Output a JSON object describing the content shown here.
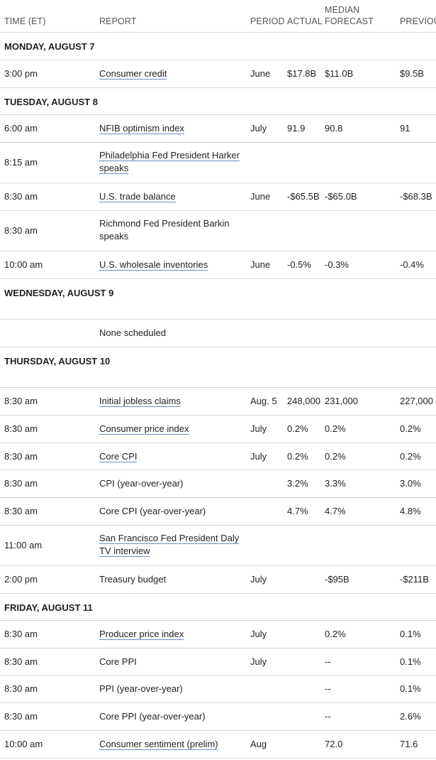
{
  "headers": {
    "time": "TIME (ET)",
    "report": "REPORT",
    "period": "PERIOD",
    "actual": "ACTUAL",
    "median_line1": "MEDIAN",
    "median_line2": "FORECAST",
    "previous": "PREVIOU"
  },
  "rows": [
    {
      "type": "day",
      "label": "MONDAY, AUGUST 7"
    },
    {
      "type": "event",
      "time": "3:00 pm",
      "report": "Consumer credit",
      "link": true,
      "period": "June",
      "actual": "$17.8B",
      "median": "$11.0B",
      "previous": "$9.5B"
    },
    {
      "type": "day",
      "label": "TUESDAY, AUGUST 8"
    },
    {
      "type": "event",
      "time": "6:00 am",
      "report": "NFIB optimism index",
      "link": true,
      "period": "July",
      "actual": "91.9",
      "median": "90.8",
      "previous": "91"
    },
    {
      "type": "event",
      "time": "8:15 am",
      "report": "Philadelphia Fed President Harker speaks",
      "link": true,
      "period": "",
      "actual": "",
      "median": "",
      "previous": ""
    },
    {
      "type": "event",
      "time": "8:30 am",
      "report": "U.S. trade balance",
      "link": true,
      "period": "June",
      "actual": "-$65.5B",
      "median": "-$65.0B",
      "previous": "-$68.3B"
    },
    {
      "type": "event",
      "time": "8:30 am",
      "report": "Richmond Fed President Barkin speaks",
      "link": false,
      "period": "",
      "actual": "",
      "median": "",
      "previous": ""
    },
    {
      "type": "event",
      "time": "10:00 am",
      "report": "U.S. wholesale inventories",
      "link": true,
      "period": "June",
      "actual": "-0.5%",
      "median": "-0.3%",
      "previous": "-0.4%"
    },
    {
      "type": "day",
      "label": "WEDNESDAY, AUGUST 9"
    },
    {
      "type": "event",
      "time": "",
      "report": "None scheduled",
      "link": false,
      "period": "",
      "actual": "",
      "median": "",
      "previous": ""
    },
    {
      "type": "day",
      "label": "THURSDAY, AUGUST 10"
    },
    {
      "type": "event",
      "time": "8:30 am",
      "report": "Initial jobless claims",
      "link": true,
      "period": "Aug. 5",
      "actual": "248,000",
      "median": "231,000",
      "previous": "227,000"
    },
    {
      "type": "event",
      "time": "8:30 am",
      "report": "Consumer price index",
      "link": true,
      "period": "July",
      "actual": "0.2%",
      "median": "0.2%",
      "previous": "0.2%"
    },
    {
      "type": "event",
      "time": "8:30 am",
      "report": "Core CPI",
      "link": true,
      "period": "July",
      "actual": "0.2%",
      "median": "0.2%",
      "previous": "0.2%"
    },
    {
      "type": "event",
      "time": "8:30 am",
      "report": "CPI (year-over-year)",
      "link": false,
      "period": "",
      "actual": "3.2%",
      "median": "3.3%",
      "previous": "3.0%"
    },
    {
      "type": "event",
      "time": "8:30 am",
      "report": "Core CPI (year-over-year)",
      "link": false,
      "period": "",
      "actual": "4.7%",
      "median": "4.7%",
      "previous": "4.8%"
    },
    {
      "type": "event",
      "time": "11:00 am",
      "report": "San Francisco Fed President Daly TV interview",
      "link": true,
      "period": "",
      "actual": "",
      "median": "",
      "previous": ""
    },
    {
      "type": "event",
      "time": "2:00 pm",
      "report": "Treasury budget",
      "link": false,
      "period": "July",
      "actual": "",
      "median": "-$95B",
      "previous": "-$211B"
    },
    {
      "type": "day",
      "label": "FRIDAY, AUGUST 11"
    },
    {
      "type": "event",
      "time": "8:30 am",
      "report": "Producer price index",
      "link": true,
      "period": "July",
      "actual": "",
      "median": "0.2%",
      "previous": "0.1%"
    },
    {
      "type": "event",
      "time": "8:30 am",
      "report": "Core PPI",
      "link": false,
      "period": "July",
      "actual": "",
      "median": "--",
      "previous": "0.1%"
    },
    {
      "type": "event",
      "time": "8:30 am",
      "report": "PPI (year-over-year)",
      "link": false,
      "period": "",
      "actual": "",
      "median": "--",
      "previous": "0.1%"
    },
    {
      "type": "event",
      "time": "8:30 am",
      "report": "Core PPI (year-over-year)",
      "link": false,
      "period": "",
      "actual": "",
      "median": "--",
      "previous": "2.6%"
    },
    {
      "type": "event",
      "time": "10:00 am",
      "report": "Consumer sentiment (prelim)",
      "link": true,
      "period": "Aug",
      "actual": "",
      "median": "72.0",
      "previous": "71.6"
    }
  ]
}
